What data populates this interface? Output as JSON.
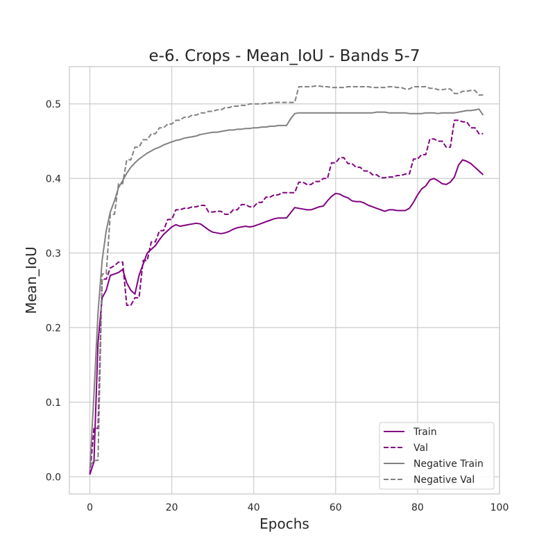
{
  "chart_data": {
    "type": "line",
    "title": "e-6. Crops - Mean_IoU - Bands 5-7",
    "xlabel": "Epochs",
    "ylabel": "Mean_IoU",
    "xlim": [
      -5,
      100
    ],
    "ylim": [
      -0.023,
      0.55
    ],
    "xticks": [
      0,
      20,
      40,
      60,
      80,
      100
    ],
    "yticks": [
      0.0,
      0.1,
      0.2,
      0.3,
      0.4,
      0.5
    ],
    "xtick_labels": [
      "0",
      "20",
      "40",
      "60",
      "80",
      "100"
    ],
    "ytick_labels": [
      "0.0",
      "0.1",
      "0.2",
      "0.3",
      "0.4",
      "0.5"
    ],
    "grid": true,
    "legend_position": "lower-right",
    "series": [
      {
        "name": "Train",
        "color": "#800080",
        "dash": "solid",
        "x": [
          0,
          1,
          2,
          3,
          4,
          5,
          6,
          7,
          8,
          9,
          10,
          11,
          12,
          13,
          14,
          15,
          16,
          17,
          18,
          19,
          20,
          21,
          22,
          23,
          24,
          25,
          26,
          27,
          28,
          29,
          30,
          31,
          32,
          33,
          34,
          35,
          36,
          37,
          38,
          39,
          40,
          41,
          42,
          43,
          44,
          45,
          46,
          47,
          48,
          49,
          50,
          51,
          52,
          53,
          54,
          55,
          56,
          57,
          58,
          59,
          60,
          61,
          62,
          63,
          64,
          65,
          66,
          67,
          68,
          69,
          70,
          71,
          72,
          73,
          74,
          75,
          76,
          77,
          78,
          79,
          80,
          81,
          82,
          83,
          84,
          85,
          86,
          87,
          88,
          89,
          90,
          91,
          92,
          93,
          94,
          95,
          96
        ],
        "y": [
          0.003,
          0.02,
          0.18,
          0.24,
          0.25,
          0.27,
          0.272,
          0.274,
          0.278,
          0.26,
          0.25,
          0.245,
          0.27,
          0.285,
          0.3,
          0.305,
          0.31,
          0.318,
          0.325,
          0.33,
          0.335,
          0.338,
          0.336,
          0.337,
          0.338,
          0.339,
          0.34,
          0.339,
          0.335,
          0.331,
          0.328,
          0.327,
          0.326,
          0.327,
          0.329,
          0.332,
          0.334,
          0.335,
          0.336,
          0.335,
          0.336,
          0.338,
          0.34,
          0.342,
          0.344,
          0.346,
          0.347,
          0.347,
          0.347,
          0.354,
          0.361,
          0.36,
          0.359,
          0.358,
          0.358,
          0.36,
          0.362,
          0.363,
          0.37,
          0.376,
          0.38,
          0.379,
          0.376,
          0.374,
          0.37,
          0.369,
          0.369,
          0.367,
          0.364,
          0.362,
          0.36,
          0.358,
          0.356,
          0.358,
          0.358,
          0.357,
          0.357,
          0.357,
          0.36,
          0.368,
          0.378,
          0.386,
          0.39,
          0.398,
          0.4,
          0.397,
          0.393,
          0.392,
          0.395,
          0.402,
          0.418,
          0.425,
          0.423,
          0.42,
          0.415,
          0.41,
          0.405
        ]
      },
      {
        "name": "Val",
        "color": "#800080",
        "dash": "dashed",
        "x": [
          0,
          1,
          2,
          3,
          4,
          5,
          6,
          7,
          8,
          9,
          10,
          11,
          12,
          13,
          14,
          15,
          16,
          17,
          18,
          19,
          20,
          21,
          22,
          23,
          24,
          25,
          26,
          27,
          28,
          29,
          30,
          31,
          32,
          33,
          34,
          35,
          36,
          37,
          38,
          39,
          40,
          41,
          42,
          43,
          44,
          45,
          46,
          47,
          48,
          49,
          50,
          51,
          52,
          53,
          54,
          55,
          56,
          57,
          58,
          59,
          60,
          61,
          62,
          63,
          64,
          65,
          66,
          67,
          68,
          69,
          70,
          71,
          72,
          73,
          74,
          75,
          76,
          77,
          78,
          79,
          80,
          81,
          82,
          83,
          84,
          85,
          86,
          87,
          88,
          89,
          90,
          91,
          92,
          93,
          94,
          95,
          96
        ],
        "y": [
          0.003,
          0.065,
          0.065,
          0.265,
          0.265,
          0.28,
          0.283,
          0.288,
          0.288,
          0.23,
          0.23,
          0.24,
          0.24,
          0.29,
          0.29,
          0.315,
          0.315,
          0.33,
          0.33,
          0.345,
          0.345,
          0.358,
          0.358,
          0.36,
          0.36,
          0.362,
          0.362,
          0.364,
          0.364,
          0.355,
          0.355,
          0.356,
          0.356,
          0.352,
          0.352,
          0.358,
          0.358,
          0.365,
          0.365,
          0.362,
          0.362,
          0.368,
          0.368,
          0.375,
          0.375,
          0.378,
          0.378,
          0.381,
          0.381,
          0.381,
          0.381,
          0.395,
          0.395,
          0.392,
          0.392,
          0.396,
          0.396,
          0.4,
          0.4,
          0.421,
          0.421,
          0.428,
          0.428,
          0.42,
          0.42,
          0.415,
          0.415,
          0.41,
          0.41,
          0.405,
          0.405,
          0.401,
          0.401,
          0.402,
          0.402,
          0.404,
          0.404,
          0.406,
          0.406,
          0.426,
          0.426,
          0.432,
          0.432,
          0.453,
          0.453,
          0.45,
          0.45,
          0.442,
          0.442,
          0.478,
          0.478,
          0.476,
          0.476,
          0.468,
          0.468,
          0.46,
          0.46
        ]
      },
      {
        "name": "Negative Train",
        "color": "#808080",
        "dash": "solid",
        "x": [
          0,
          1,
          2,
          3,
          4,
          5,
          6,
          7,
          8,
          9,
          10,
          11,
          12,
          13,
          14,
          15,
          16,
          17,
          18,
          19,
          20,
          21,
          22,
          23,
          24,
          25,
          26,
          27,
          28,
          29,
          30,
          31,
          32,
          33,
          34,
          35,
          36,
          37,
          38,
          39,
          40,
          41,
          42,
          43,
          44,
          45,
          46,
          47,
          48,
          49,
          50,
          51,
          52,
          53,
          54,
          55,
          56,
          57,
          58,
          59,
          60,
          61,
          62,
          63,
          64,
          65,
          66,
          67,
          68,
          69,
          70,
          71,
          72,
          73,
          74,
          75,
          76,
          77,
          78,
          79,
          80,
          81,
          82,
          83,
          84,
          85,
          86,
          87,
          88,
          89,
          90,
          91,
          92,
          93,
          94,
          95,
          96
        ],
        "y": [
          0.01,
          0.11,
          0.22,
          0.29,
          0.33,
          0.355,
          0.37,
          0.388,
          0.397,
          0.407,
          0.415,
          0.421,
          0.426,
          0.43,
          0.434,
          0.437,
          0.44,
          0.442,
          0.445,
          0.447,
          0.449,
          0.451,
          0.452,
          0.454,
          0.455,
          0.456,
          0.457,
          0.459,
          0.46,
          0.461,
          0.462,
          0.462,
          0.463,
          0.464,
          0.465,
          0.465,
          0.466,
          0.466,
          0.467,
          0.467,
          0.468,
          0.468,
          0.469,
          0.469,
          0.47,
          0.47,
          0.471,
          0.471,
          0.471,
          0.48,
          0.487,
          0.488,
          0.488,
          0.488,
          0.488,
          0.488,
          0.488,
          0.488,
          0.488,
          0.488,
          0.488,
          0.488,
          0.488,
          0.488,
          0.488,
          0.488,
          0.488,
          0.488,
          0.488,
          0.488,
          0.489,
          0.489,
          0.489,
          0.488,
          0.488,
          0.488,
          0.488,
          0.488,
          0.487,
          0.487,
          0.487,
          0.487,
          0.488,
          0.488,
          0.488,
          0.487,
          0.488,
          0.488,
          0.488,
          0.488,
          0.489,
          0.49,
          0.491,
          0.491,
          0.492,
          0.493,
          0.485
        ]
      },
      {
        "name": "Negative Val",
        "color": "#808080",
        "dash": "dashed",
        "x": [
          0,
          1,
          2,
          3,
          4,
          5,
          6,
          7,
          8,
          9,
          10,
          11,
          12,
          13,
          14,
          15,
          16,
          17,
          18,
          19,
          20,
          21,
          22,
          23,
          24,
          25,
          26,
          27,
          28,
          29,
          30,
          31,
          32,
          33,
          34,
          35,
          36,
          37,
          38,
          39,
          40,
          41,
          42,
          43,
          44,
          45,
          46,
          47,
          48,
          49,
          50,
          51,
          52,
          53,
          54,
          55,
          56,
          57,
          58,
          59,
          60,
          61,
          62,
          63,
          64,
          65,
          66,
          67,
          68,
          69,
          70,
          71,
          72,
          73,
          74,
          75,
          76,
          77,
          78,
          79,
          80,
          81,
          82,
          83,
          84,
          85,
          86,
          87,
          88,
          89,
          90,
          91,
          92,
          93,
          94,
          95,
          96
        ],
        "y": [
          0.015,
          0.022,
          0.022,
          0.272,
          0.272,
          0.352,
          0.352,
          0.393,
          0.393,
          0.425,
          0.425,
          0.442,
          0.442,
          0.452,
          0.452,
          0.46,
          0.46,
          0.468,
          0.468,
          0.473,
          0.473,
          0.478,
          0.478,
          0.482,
          0.482,
          0.485,
          0.485,
          0.488,
          0.488,
          0.49,
          0.49,
          0.492,
          0.492,
          0.495,
          0.495,
          0.497,
          0.497,
          0.498,
          0.498,
          0.5,
          0.5,
          0.5,
          0.5,
          0.501,
          0.501,
          0.502,
          0.502,
          0.502,
          0.502,
          0.502,
          0.502,
          0.523,
          0.523,
          0.523,
          0.523,
          0.524,
          0.524,
          0.523,
          0.523,
          0.522,
          0.522,
          0.522,
          0.522,
          0.523,
          0.523,
          0.523,
          0.523,
          0.523,
          0.523,
          0.522,
          0.522,
          0.522,
          0.522,
          0.523,
          0.523,
          0.522,
          0.522,
          0.52,
          0.52,
          0.523,
          0.523,
          0.523,
          0.523,
          0.521,
          0.521,
          0.519,
          0.519,
          0.52,
          0.52,
          0.514,
          0.514,
          0.517,
          0.517,
          0.518,
          0.518,
          0.512,
          0.512
        ]
      }
    ]
  }
}
